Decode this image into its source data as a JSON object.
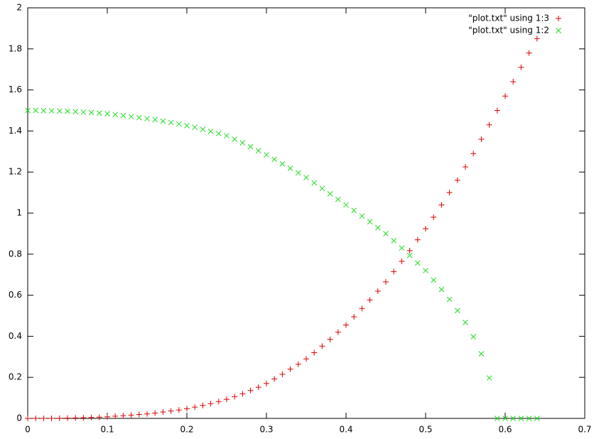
{
  "chart_data": {
    "type": "scatter",
    "x": [
      0,
      0.01,
      0.02,
      0.03,
      0.04,
      0.05,
      0.06,
      0.07,
      0.08,
      0.09,
      0.1,
      0.11,
      0.12,
      0.13,
      0.14,
      0.15,
      0.16,
      0.17,
      0.18,
      0.19,
      0.2,
      0.21,
      0.22,
      0.23,
      0.24,
      0.25,
      0.26,
      0.27,
      0.28,
      0.29,
      0.3,
      0.31,
      0.32,
      0.33,
      0.34,
      0.35,
      0.36,
      0.37,
      0.38,
      0.39,
      0.4,
      0.41,
      0.42,
      0.43,
      0.44,
      0.45,
      0.46,
      0.47,
      0.48,
      0.49,
      0.5,
      0.51,
      0.52,
      0.53,
      0.54,
      0.55,
      0.56,
      0.57,
      0.58,
      0.59,
      0.6,
      0.61,
      0.62,
      0.63,
      0.64
    ],
    "series": [
      {
        "name": "\"plot.txt\" using 1:3",
        "color": "#dd0000",
        "marker": "plus",
        "values": [
          0,
          0,
          0,
          0.0002,
          0.0006,
          0.0012,
          0.002,
          0.003,
          0.0045,
          0.006,
          0.008,
          0.011,
          0.013,
          0.016,
          0.019,
          0.022,
          0.026,
          0.031,
          0.036,
          0.041,
          0.047,
          0.055,
          0.063,
          0.072,
          0.082,
          0.093,
          0.106,
          0.12,
          0.136,
          0.152,
          0.17,
          0.192,
          0.215,
          0.24,
          0.264,
          0.29,
          0.32,
          0.352,
          0.385,
          0.42,
          0.455,
          0.495,
          0.535,
          0.577,
          0.62,
          0.665,
          0.715,
          0.765,
          0.817,
          0.87,
          0.924,
          0.98,
          1.04,
          1.1,
          1.16,
          1.225,
          1.29,
          1.36,
          1.43,
          1.5,
          1.57,
          1.64,
          1.71,
          1.78,
          1.85
        ]
      },
      {
        "name": "\"plot.txt\" using 1:2",
        "color": "#22dd22",
        "marker": "cross",
        "values": [
          1.5,
          1.5,
          1.499,
          1.498,
          1.497,
          1.496,
          1.494,
          1.492,
          1.49,
          1.487,
          1.484,
          1.48,
          1.475,
          1.47,
          1.465,
          1.46,
          1.455,
          1.448,
          1.441,
          1.434,
          1.426,
          1.418,
          1.408,
          1.398,
          1.388,
          1.377,
          1.36,
          1.342,
          1.323,
          1.304,
          1.284,
          1.262,
          1.24,
          1.218,
          1.196,
          1.173,
          1.147,
          1.12,
          1.094,
          1.067,
          1.04,
          1.013,
          0.986,
          0.958,
          0.929,
          0.9,
          0.866,
          0.83,
          0.794,
          0.757,
          0.72,
          0.674,
          0.628,
          0.58,
          0.525,
          0.467,
          0.398,
          0.315,
          0.197,
          0,
          0,
          0,
          0,
          0,
          0
        ]
      }
    ],
    "xlim": [
      0,
      0.7
    ],
    "xticks": [
      0,
      0.1,
      0.2,
      0.3,
      0.4,
      0.5,
      0.6,
      0.7
    ],
    "ylim": [
      0,
      2
    ],
    "yticks": [
      0,
      0.2,
      0.4,
      0.6,
      0.8,
      1,
      1.2,
      1.4,
      1.6,
      1.8,
      2
    ],
    "grid": false,
    "legend": "top-right"
  }
}
